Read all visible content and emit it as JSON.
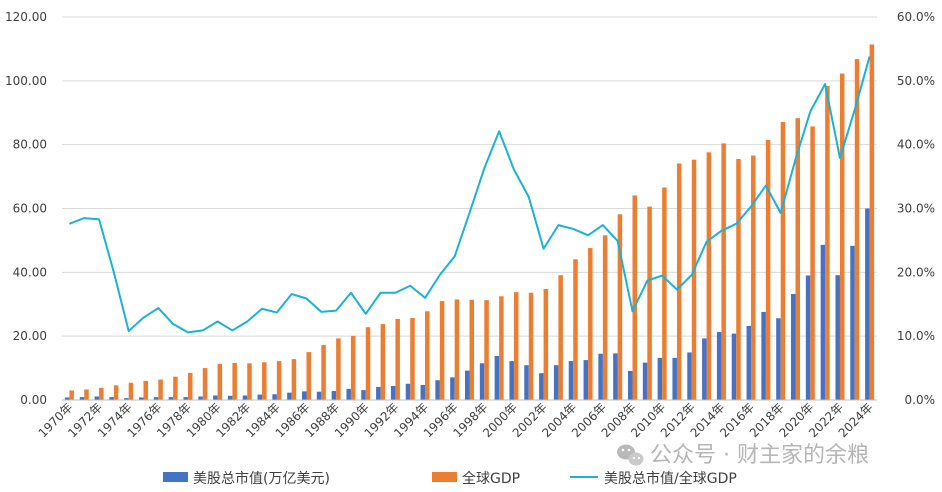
{
  "chart_data": {
    "type": "bar",
    "categories": [
      "1970年",
      "1971年",
      "1972年",
      "1973年",
      "1974年",
      "1975年",
      "1976年",
      "1977年",
      "1978年",
      "1979年",
      "1980年",
      "1981年",
      "1982年",
      "1983年",
      "1984年",
      "1985年",
      "1986年",
      "1987年",
      "1988年",
      "1989年",
      "1990年",
      "1991年",
      "1992年",
      "1993年",
      "1994年",
      "1995年",
      "1996年",
      "1997年",
      "1998年",
      "1999年",
      "2000年",
      "2001年",
      "2002年",
      "2003年",
      "2004年",
      "2005年",
      "2006年",
      "2007年",
      "2008年",
      "2009年",
      "2010年",
      "2011年",
      "2012年",
      "2013年",
      "2014年",
      "2015年",
      "2016年",
      "2017年",
      "2018年",
      "2019年",
      "2020年",
      "2021年",
      "2022年",
      "2023年",
      "2024年"
    ],
    "x_tick_labels": [
      "1970年",
      "1972年",
      "1974年",
      "1976年",
      "1978年",
      "1980年",
      "1982年",
      "1984年",
      "1986年",
      "1988年",
      "1990年",
      "1992年",
      "1994年",
      "1996年",
      "1998年",
      "2000年",
      "2002年",
      "2004年",
      "2006年",
      "2008年",
      "2010年",
      "2012年",
      "2014年",
      "2016年",
      "2018年",
      "2020年",
      "2022年",
      "2024年"
    ],
    "series": [
      {
        "name": "美股总市值(万亿美元)",
        "type": "bar",
        "axis": "left",
        "color": "#4472C4",
        "values": [
          0.8,
          0.9,
          1.1,
          0.9,
          0.6,
          0.8,
          0.9,
          0.9,
          0.9,
          1.1,
          1.4,
          1.3,
          1.4,
          1.7,
          1.8,
          2.3,
          2.7,
          2.6,
          2.8,
          3.5,
          3.1,
          4.1,
          4.4,
          5.1,
          4.7,
          6.2,
          7.1,
          9.2,
          11.5,
          13.8,
          12.2,
          10.9,
          8.4,
          10.9,
          12.2,
          12.5,
          14.5,
          14.6,
          9.1,
          11.7,
          13.2,
          13.2,
          14.9,
          19.3,
          21.3,
          20.8,
          23.2,
          27.6,
          25.6,
          33.2,
          39.0,
          48.6,
          39.1,
          48.3,
          60.0
        ]
      },
      {
        "name": "全球GDP",
        "type": "bar",
        "axis": "left",
        "color": "#ED7D31",
        "values": [
          3.0,
          3.3,
          3.8,
          4.6,
          5.4,
          6.0,
          6.4,
          7.3,
          8.5,
          10.0,
          11.3,
          11.6,
          11.5,
          11.8,
          12.2,
          12.8,
          15.0,
          17.2,
          19.3,
          20.1,
          22.8,
          23.8,
          25.4,
          25.7,
          27.8,
          31.0,
          31.5,
          31.4,
          31.3,
          32.5,
          33.8,
          33.6,
          34.8,
          39.1,
          44.1,
          47.6,
          51.6,
          58.2,
          64.1,
          60.6,
          66.6,
          74.1,
          75.3,
          77.6,
          80.4,
          75.5,
          76.6,
          81.5,
          87.1,
          88.3,
          85.7,
          98.4,
          102.3,
          106.8,
          111.4
        ]
      },
      {
        "name": "美股总市值/全球GDP",
        "type": "line",
        "axis": "right",
        "color": "#1BB2D6",
        "values": [
          27.6,
          28.5,
          28.3,
          20.0,
          10.8,
          12.9,
          14.4,
          11.9,
          10.6,
          10.9,
          12.3,
          10.9,
          12.3,
          14.3,
          13.7,
          16.6,
          15.9,
          13.8,
          14.0,
          16.8,
          13.5,
          16.8,
          16.8,
          17.9,
          16.0,
          19.6,
          22.5,
          29.3,
          36.3,
          42.1,
          36.1,
          31.8,
          23.7,
          27.4,
          26.8,
          25.8,
          27.4,
          24.9,
          13.9,
          18.7,
          19.5,
          17.3,
          19.6,
          24.8,
          26.5,
          27.6,
          30.3,
          33.6,
          29.3,
          37.7,
          45.2,
          49.5,
          37.9,
          45.5,
          53.8
        ]
      }
    ],
    "ylim_left": [
      0,
      120
    ],
    "yticks_left": [
      "0.00",
      "20.00",
      "40.00",
      "60.00",
      "80.00",
      "100.00",
      "120.00"
    ],
    "ylim_right": [
      0,
      60
    ],
    "yticks_right": [
      "0.0%",
      "10.0%",
      "20.0%",
      "30.0%",
      "40.0%",
      "50.0%",
      "60.0%"
    ],
    "grid": true,
    "legend": "bottom"
  },
  "legend": {
    "items": [
      {
        "label": "美股总市值(万亿美元)",
        "color": "#4472C4",
        "kind": "bar"
      },
      {
        "label": "全球GDP",
        "color": "#ED7D31",
        "kind": "bar"
      },
      {
        "label": "美股总市值/全球GDP",
        "color": "#1BB2D6",
        "kind": "line"
      }
    ]
  },
  "watermark": {
    "text": "公众号 · 财主家的余粮",
    "icon": "wechat-icon"
  }
}
